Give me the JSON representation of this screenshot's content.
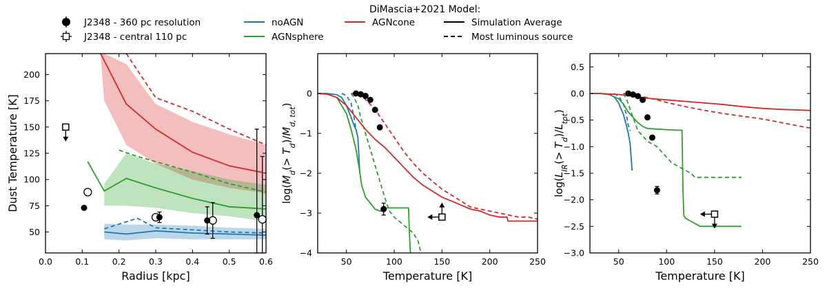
{
  "legend": {
    "model_title": "DiMascia+2021 Model:",
    "obs": [
      "J2348 - 360 pc resolution",
      "J2348 - central 110 pc"
    ],
    "models": [
      {
        "name": "noAGN",
        "color": "#1f77b4"
      },
      {
        "name": "AGNcone",
        "color": "#d62728"
      },
      {
        "name": "AGNsphere",
        "color": "#2ca02c"
      }
    ],
    "styles": [
      "Simulation Average",
      "Most luminous source"
    ]
  },
  "colors": {
    "noAGN": "#1f77b4",
    "AGNsphere": "#2ca02c",
    "AGNcone": "#d62728"
  },
  "chart_data": [
    {
      "type": "line",
      "xlabel": "Radius [kpc]",
      "ylabel": "Dust Temperature [K]",
      "xlim": [
        0.0,
        0.6
      ],
      "ylim": [
        30,
        220
      ],
      "xticks": [
        "0.0",
        "0.1",
        "0.2",
        "0.3",
        "0.4",
        "0.5",
        "0.6"
      ],
      "yticks": [
        "50",
        "75",
        "100",
        "125",
        "150",
        "175",
        "200"
      ],
      "xtick_values": [
        0.0,
        0.1,
        0.2,
        0.3,
        0.4,
        0.5,
        0.6
      ],
      "ytick_values": [
        50,
        75,
        100,
        125,
        150,
        175,
        200
      ],
      "bands": [
        {
          "model": "AGNcone",
          "x": [
            0.15,
            0.16,
            0.22,
            0.3,
            0.4,
            0.5,
            0.58,
            0.6
          ],
          "lo": [
            218,
            175,
            133,
            115,
            100,
            92,
            88,
            86
          ],
          "hi": [
            220,
            220,
            210,
            172,
            155,
            143,
            135,
            133
          ]
        },
        {
          "model": "AGNsphere",
          "x": [
            0.16,
            0.22,
            0.3,
            0.4,
            0.5,
            0.6
          ],
          "lo": [
            75,
            75,
            73,
            68,
            65,
            60
          ],
          "hi": [
            96,
            125,
            115,
            108,
            100,
            95
          ]
        },
        {
          "model": "noAGN",
          "x": [
            0.16,
            0.22,
            0.3,
            0.4,
            0.5,
            0.6
          ],
          "lo": [
            43,
            42,
            44,
            43,
            43,
            43
          ],
          "hi": [
            58,
            57,
            57,
            56,
            54,
            53
          ]
        }
      ],
      "series": [
        {
          "model": "AGNcone",
          "style": "solid",
          "x": [
            0.15,
            0.22,
            0.3,
            0.4,
            0.5,
            0.6
          ],
          "y": [
            220,
            172,
            148,
            126,
            113,
            106
          ]
        },
        {
          "model": "AGNcone",
          "style": "dashed",
          "x": [
            0.22,
            0.3,
            0.4,
            0.5,
            0.6
          ],
          "y": [
            220,
            178,
            165,
            148,
            133
          ]
        },
        {
          "model": "AGNsphere",
          "style": "solid",
          "x": [
            0.115,
            0.16,
            0.22,
            0.3,
            0.4,
            0.5,
            0.6
          ],
          "y": [
            117,
            89,
            101,
            92,
            82,
            74,
            72
          ]
        },
        {
          "model": "AGNsphere",
          "style": "dashed",
          "x": [
            0.2,
            0.25,
            0.3,
            0.4,
            0.5,
            0.6
          ],
          "y": [
            128,
            122,
            117,
            107,
            96,
            88
          ]
        },
        {
          "model": "noAGN",
          "style": "solid",
          "x": [
            0.16,
            0.22,
            0.3,
            0.4,
            0.5,
            0.6
          ],
          "y": [
            50,
            48,
            51,
            49,
            48,
            47
          ]
        },
        {
          "model": "noAGN",
          "style": "dashed",
          "x": [
            0.16,
            0.25,
            0.3,
            0.4,
            0.5,
            0.6
          ],
          "y": [
            53,
            63,
            54,
            52,
            50,
            49
          ]
        }
      ],
      "points_filled": [
        {
          "x": 0.105,
          "y": 73
        },
        {
          "x": 0.31,
          "y": 64,
          "yerr": 5
        },
        {
          "x": 0.44,
          "y": 61,
          "yerr": 13
        },
        {
          "x": 0.575,
          "y": 66,
          "yerr": 82
        }
      ],
      "points_open": [
        {
          "x": 0.115,
          "y": 88
        },
        {
          "x": 0.3,
          "y": 64
        },
        {
          "x": 0.455,
          "y": 61,
          "yerr": 17
        },
        {
          "x": 0.59,
          "y": 62,
          "yerr": 60
        }
      ],
      "limits": [
        {
          "x": 0.055,
          "y": 150,
          "arrows": [
            "down"
          ]
        }
      ]
    },
    {
      "type": "line",
      "xlabel": "Temperature [K]",
      "ylabel": "log(M_d(>T_d)/M_d,tot)",
      "xlim": [
        20,
        250
      ],
      "ylim": [
        -4,
        1
      ],
      "xticks": [
        "50",
        "100",
        "150",
        "200",
        "250"
      ],
      "yticks": [
        "0",
        "−1",
        "−2",
        "−3",
        "−4"
      ],
      "xtick_values": [
        50,
        100,
        150,
        200,
        250
      ],
      "ytick_values": [
        0,
        -1,
        -2,
        -3,
        -4
      ],
      "series": [
        {
          "model": "noAGN",
          "style": "solid",
          "x": [
            20,
            30,
            40,
            45,
            50,
            55,
            58,
            60,
            62,
            63,
            64
          ],
          "y": [
            0,
            0,
            -0.03,
            -0.1,
            -0.3,
            -0.6,
            -0.8,
            -0.9,
            -1.1,
            -1.5,
            -2.0
          ]
        },
        {
          "model": "noAGN",
          "style": "dashed",
          "x": [
            45,
            50,
            55,
            58,
            60,
            62
          ],
          "y": [
            0,
            -0.05,
            -0.25,
            -0.6,
            -0.9,
            -1.1
          ]
        },
        {
          "model": "AGNsphere",
          "style": "solid",
          "x": [
            20,
            30,
            40,
            50,
            55,
            60,
            63,
            66,
            70,
            75,
            80,
            85,
            88,
            88.5,
            100,
            115,
            116,
            117
          ],
          "y": [
            0,
            -0.01,
            -0.1,
            -0.5,
            -0.9,
            -1.4,
            -1.8,
            -2.3,
            -2.6,
            -2.75,
            -2.9,
            -2.95,
            -2.95,
            -2.87,
            -2.87,
            -2.87,
            -3.5,
            -4
          ]
        },
        {
          "model": "AGNsphere",
          "style": "dashed",
          "x": [
            55,
            58,
            62,
            65,
            70,
            75,
            80,
            85,
            90,
            95,
            100,
            105,
            110,
            115,
            120,
            125,
            128
          ],
          "y": [
            0,
            -0.1,
            -0.3,
            -0.6,
            -1.0,
            -1.4,
            -1.8,
            -2.2,
            -2.6,
            -2.95,
            -3.1,
            -3.2,
            -3.3,
            -3.4,
            -3.5,
            -3.7,
            -4
          ]
        },
        {
          "model": "AGNcone",
          "style": "solid",
          "x": [
            20,
            30,
            40,
            50,
            60,
            70,
            80,
            90,
            100,
            110,
            120,
            130,
            140,
            150,
            160,
            170,
            180,
            190,
            200,
            210,
            218,
            219,
            230,
            250
          ],
          "y": [
            0,
            -0.02,
            -0.1,
            -0.3,
            -0.6,
            -0.9,
            -1.15,
            -1.35,
            -1.6,
            -1.85,
            -2.1,
            -2.3,
            -2.45,
            -2.6,
            -2.7,
            -2.8,
            -2.9,
            -2.95,
            -3.05,
            -3.1,
            -3.1,
            -3.2,
            -3.2,
            -3.2
          ]
        },
        {
          "model": "AGNcone",
          "style": "dashed",
          "x": [
            55,
            60,
            65,
            70,
            80,
            90,
            100,
            110,
            120,
            130,
            140,
            150,
            160,
            170,
            180,
            190,
            200,
            210,
            220,
            230,
            240,
            250
          ],
          "y": [
            0,
            -0.01,
            -0.05,
            -0.15,
            -0.4,
            -0.75,
            -1.1,
            -1.45,
            -1.75,
            -2.0,
            -2.2,
            -2.4,
            -2.55,
            -2.7,
            -2.85,
            -2.9,
            -2.95,
            -3.0,
            -3.05,
            -3.1,
            -3.1,
            -3.15
          ]
        }
      ],
      "points_filled": [
        {
          "x": 60,
          "y": 0
        },
        {
          "x": 65,
          "y": -0.02
        },
        {
          "x": 70,
          "y": -0.06
        },
        {
          "x": 75,
          "y": -0.16
        },
        {
          "x": 80,
          "y": -0.41
        },
        {
          "x": 85,
          "y": -0.85
        },
        {
          "x": 89,
          "y": -2.9,
          "yerr": 0.15
        }
      ],
      "points_open": [],
      "limits": [
        {
          "x": 150,
          "y": -3.1,
          "arrows": [
            "left",
            "up"
          ]
        }
      ]
    },
    {
      "type": "line",
      "xlabel": "Temperature [K]",
      "ylabel": "log(L_IR(>T_d)/L_tot)",
      "xlim": [
        20,
        250
      ],
      "ylim": [
        -3,
        0.75
      ],
      "xticks": [
        "50",
        "100",
        "150",
        "200",
        "250"
      ],
      "yticks": [
        "0.5",
        "0.0",
        "−0.5",
        "−1.0",
        "−1.5",
        "−2.0",
        "−2.5",
        "−3.0"
      ],
      "xtick_values": [
        50,
        100,
        150,
        200,
        250
      ],
      "ytick_values": [
        0.5,
        0,
        -0.5,
        -1.0,
        -1.5,
        -2.0,
        -2.5,
        -3.0
      ],
      "series": [
        {
          "model": "noAGN",
          "style": "solid",
          "x": [
            20,
            30,
            40,
            45,
            50,
            55,
            58,
            60,
            62,
            63,
            64
          ],
          "y": [
            0,
            0,
            -0.02,
            -0.06,
            -0.18,
            -0.4,
            -0.6,
            -0.75,
            -0.95,
            -1.2,
            -1.45
          ]
        },
        {
          "model": "noAGN",
          "style": "dashed",
          "x": [
            45,
            50,
            55,
            58,
            60,
            62
          ],
          "y": [
            0,
            -0.05,
            -0.2,
            -0.4,
            -0.6,
            -0.7
          ]
        },
        {
          "model": "AGNsphere",
          "style": "solid",
          "x": [
            20,
            30,
            40,
            50,
            55,
            60,
            65,
            70,
            75,
            80,
            90,
            100,
            110,
            116,
            117,
            118,
            120,
            125,
            130,
            135,
            140,
            150,
            178
          ],
          "y": [
            0,
            0,
            -0.02,
            -0.1,
            -0.2,
            -0.35,
            -0.45,
            -0.55,
            -0.62,
            -0.66,
            -0.67,
            -0.68,
            -0.69,
            -0.69,
            -1.8,
            -2.3,
            -2.35,
            -2.4,
            -2.45,
            -2.5,
            -2.5,
            -2.5,
            -2.5
          ]
        },
        {
          "model": "AGNsphere",
          "style": "dashed",
          "x": [
            55,
            58,
            62,
            66,
            70,
            75,
            80,
            85,
            90,
            95,
            100,
            105,
            110,
            115,
            120,
            125,
            130,
            178
          ],
          "y": [
            0,
            -0.1,
            -0.3,
            -0.5,
            -0.7,
            -0.8,
            -0.9,
            -0.95,
            -1.0,
            -1.1,
            -1.2,
            -1.3,
            -1.35,
            -1.4,
            -1.45,
            -1.5,
            -1.58,
            -1.58
          ]
        },
        {
          "model": "AGNcone",
          "style": "solid",
          "x": [
            20,
            30,
            40,
            50,
            60,
            70,
            80,
            100,
            120,
            140,
            160,
            180,
            200,
            220,
            250
          ],
          "y": [
            0,
            0,
            -0.01,
            -0.02,
            -0.04,
            -0.07,
            -0.09,
            -0.12,
            -0.15,
            -0.18,
            -0.21,
            -0.25,
            -0.28,
            -0.3,
            -0.32
          ]
        },
        {
          "model": "AGNcone",
          "style": "dashed",
          "x": [
            55,
            60,
            70,
            80,
            90,
            100,
            120,
            140,
            160,
            180,
            200,
            220,
            240,
            250
          ],
          "y": [
            0,
            -0.01,
            -0.04,
            -0.08,
            -0.12,
            -0.17,
            -0.25,
            -0.32,
            -0.38,
            -0.43,
            -0.48,
            -0.55,
            -0.62,
            -0.65
          ]
        }
      ],
      "points_filled": [
        {
          "x": 60,
          "y": 0.0
        },
        {
          "x": 65,
          "y": -0.02
        },
        {
          "x": 70,
          "y": -0.05
        },
        {
          "x": 75,
          "y": -0.12
        },
        {
          "x": 80,
          "y": -0.45
        },
        {
          "x": 85,
          "y": -0.83
        },
        {
          "x": 90,
          "y": -1.82,
          "yerr": 0.07
        }
      ],
      "points_open": [],
      "limits": [
        {
          "x": 150,
          "y": -2.27,
          "arrows": [
            "left",
            "down"
          ]
        }
      ]
    }
  ]
}
